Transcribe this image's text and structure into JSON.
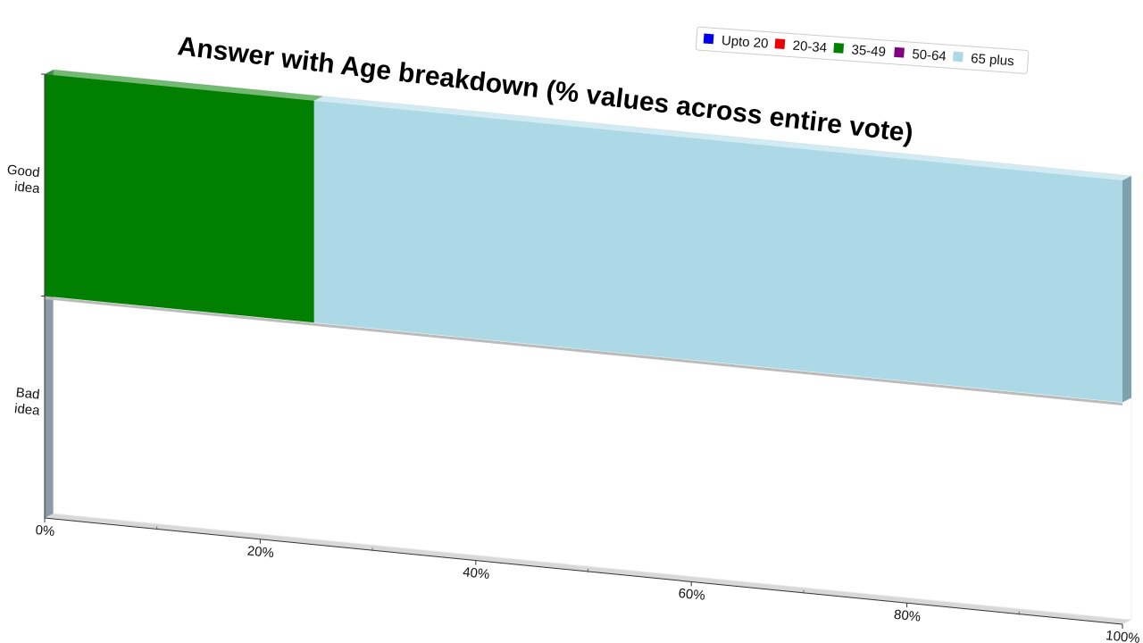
{
  "chart_data": {
    "type": "bar",
    "orientation": "horizontal",
    "stacked": true,
    "title": "Answer with Age breakdown (% values across entire vote)",
    "xlabel": "",
    "ylabel": "",
    "categories": [
      "Good idea",
      "Bad idea"
    ],
    "xlim": [
      0,
      100
    ],
    "x_ticks": [
      "0%",
      "20%",
      "40%",
      "60%",
      "80%",
      "100%"
    ],
    "legend_position": "top-right",
    "series": [
      {
        "name": "Upto 20",
        "color": "#0000ee",
        "values": [
          0,
          0
        ]
      },
      {
        "name": "20-34",
        "color": "#ee0000",
        "values": [
          0,
          0
        ]
      },
      {
        "name": "35-49",
        "color": "#007f00",
        "values": [
          25,
          0
        ]
      },
      {
        "name": "50-64",
        "color": "#800080",
        "values": [
          0,
          0
        ]
      },
      {
        "name": "65 plus",
        "color": "#add8e6",
        "values": [
          75,
          0
        ]
      }
    ]
  }
}
